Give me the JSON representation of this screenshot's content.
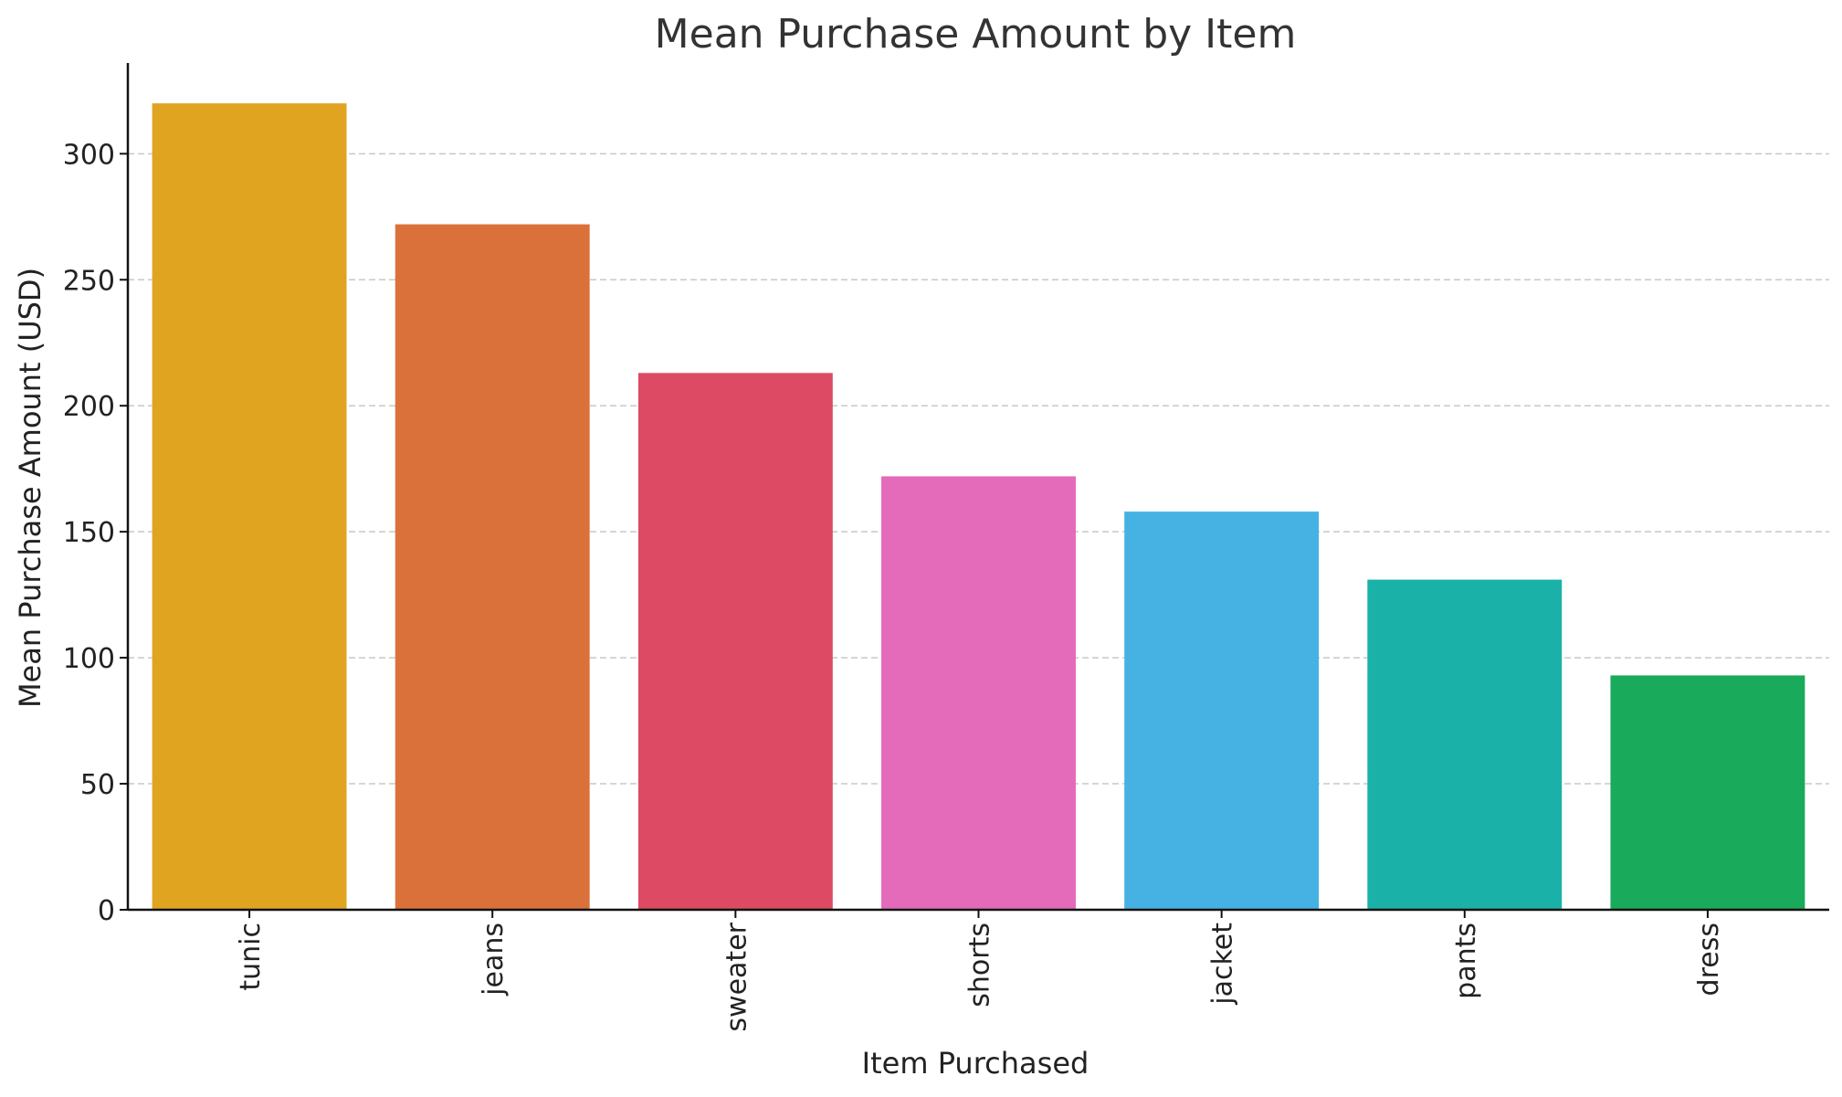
{
  "chart_data": {
    "type": "bar",
    "title": "Mean Purchase Amount by Item",
    "xlabel": "Item Purchased",
    "ylabel": "Mean Purchase Amount (USD)",
    "categories": [
      "tunic",
      "jeans",
      "sweater",
      "shorts",
      "jacket",
      "pants",
      "dress"
    ],
    "values": [
      320,
      272,
      213,
      172,
      158,
      131,
      93
    ],
    "colors": [
      "#E0A421",
      "#DB713A",
      "#DD4A64",
      "#E36BB9",
      "#45B2E3",
      "#1AB2A8",
      "#1AAA5B"
    ],
    "yticks": [
      0,
      50,
      100,
      150,
      200,
      250,
      300
    ],
    "ylim": [
      0,
      336
    ],
    "grid": "horizontal-dashed",
    "legend": "none"
  }
}
